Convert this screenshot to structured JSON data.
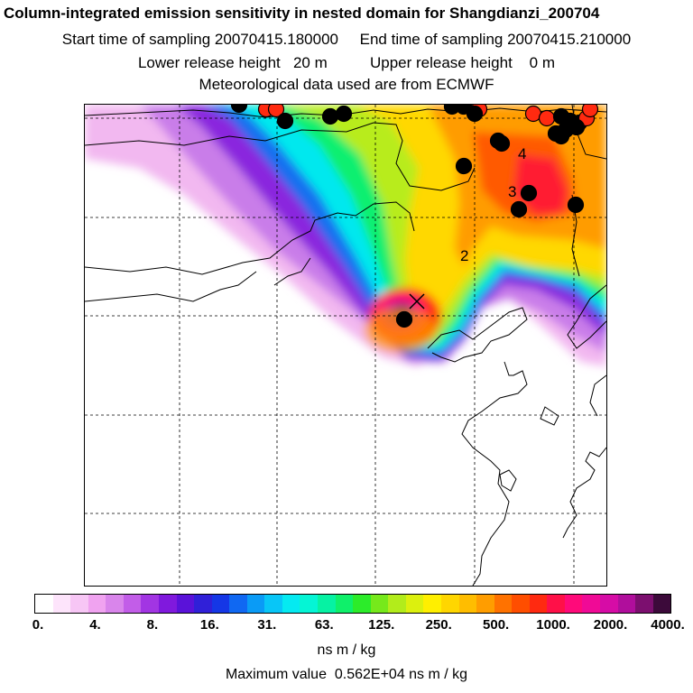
{
  "header": {
    "title": "Column-integrated emission sensitivity in nested domain for Shangdianzi_200704",
    "line2": "Start time of sampling 20070415.180000     End time of sampling 20070415.210000",
    "line3": "Lower release height   20 m          Upper release height    0 m",
    "line4": "Meteorological data used are from ECMWF"
  },
  "map": {
    "labels": [
      "4",
      "3",
      "2"
    ],
    "colors": {
      "coast": "#000000",
      "grid": "#000000",
      "cluster": "#000000",
      "cluster_recent": "#ff2a10"
    }
  },
  "colorbar": {
    "colors": [
      "#ffffff",
      "#fde4fb",
      "#f7c6f5",
      "#f0a3f0",
      "#d985eb",
      "#c25de8",
      "#a235e3",
      "#8019dd",
      "#5a12d9",
      "#3020d8",
      "#1537e6",
      "#1068f2",
      "#0a9bf6",
      "#08c6f7",
      "#05eaf1",
      "#05f5d5",
      "#06f2a3",
      "#0ff06a",
      "#2cec2a",
      "#76e91b",
      "#b2ec1b",
      "#dcf00e",
      "#ffef00",
      "#ffd600",
      "#ffbd00",
      "#ff9d00",
      "#ff7200",
      "#ff4e00",
      "#ff2a10",
      "#ff1048",
      "#ff0a7a",
      "#f00a96",
      "#d60ca6",
      "#b00e9c",
      "#7c0f6f",
      "#3c0a3a"
    ],
    "tick_labels": [
      "0.",
      "4.",
      "8.",
      "16.",
      "31.",
      "63.",
      "125.",
      "250.",
      "500.",
      "1000.",
      "2000.",
      "4000."
    ],
    "units": "ns m / kg",
    "max_label": "Maximum value  0.562E+04 ns m / kg"
  }
}
